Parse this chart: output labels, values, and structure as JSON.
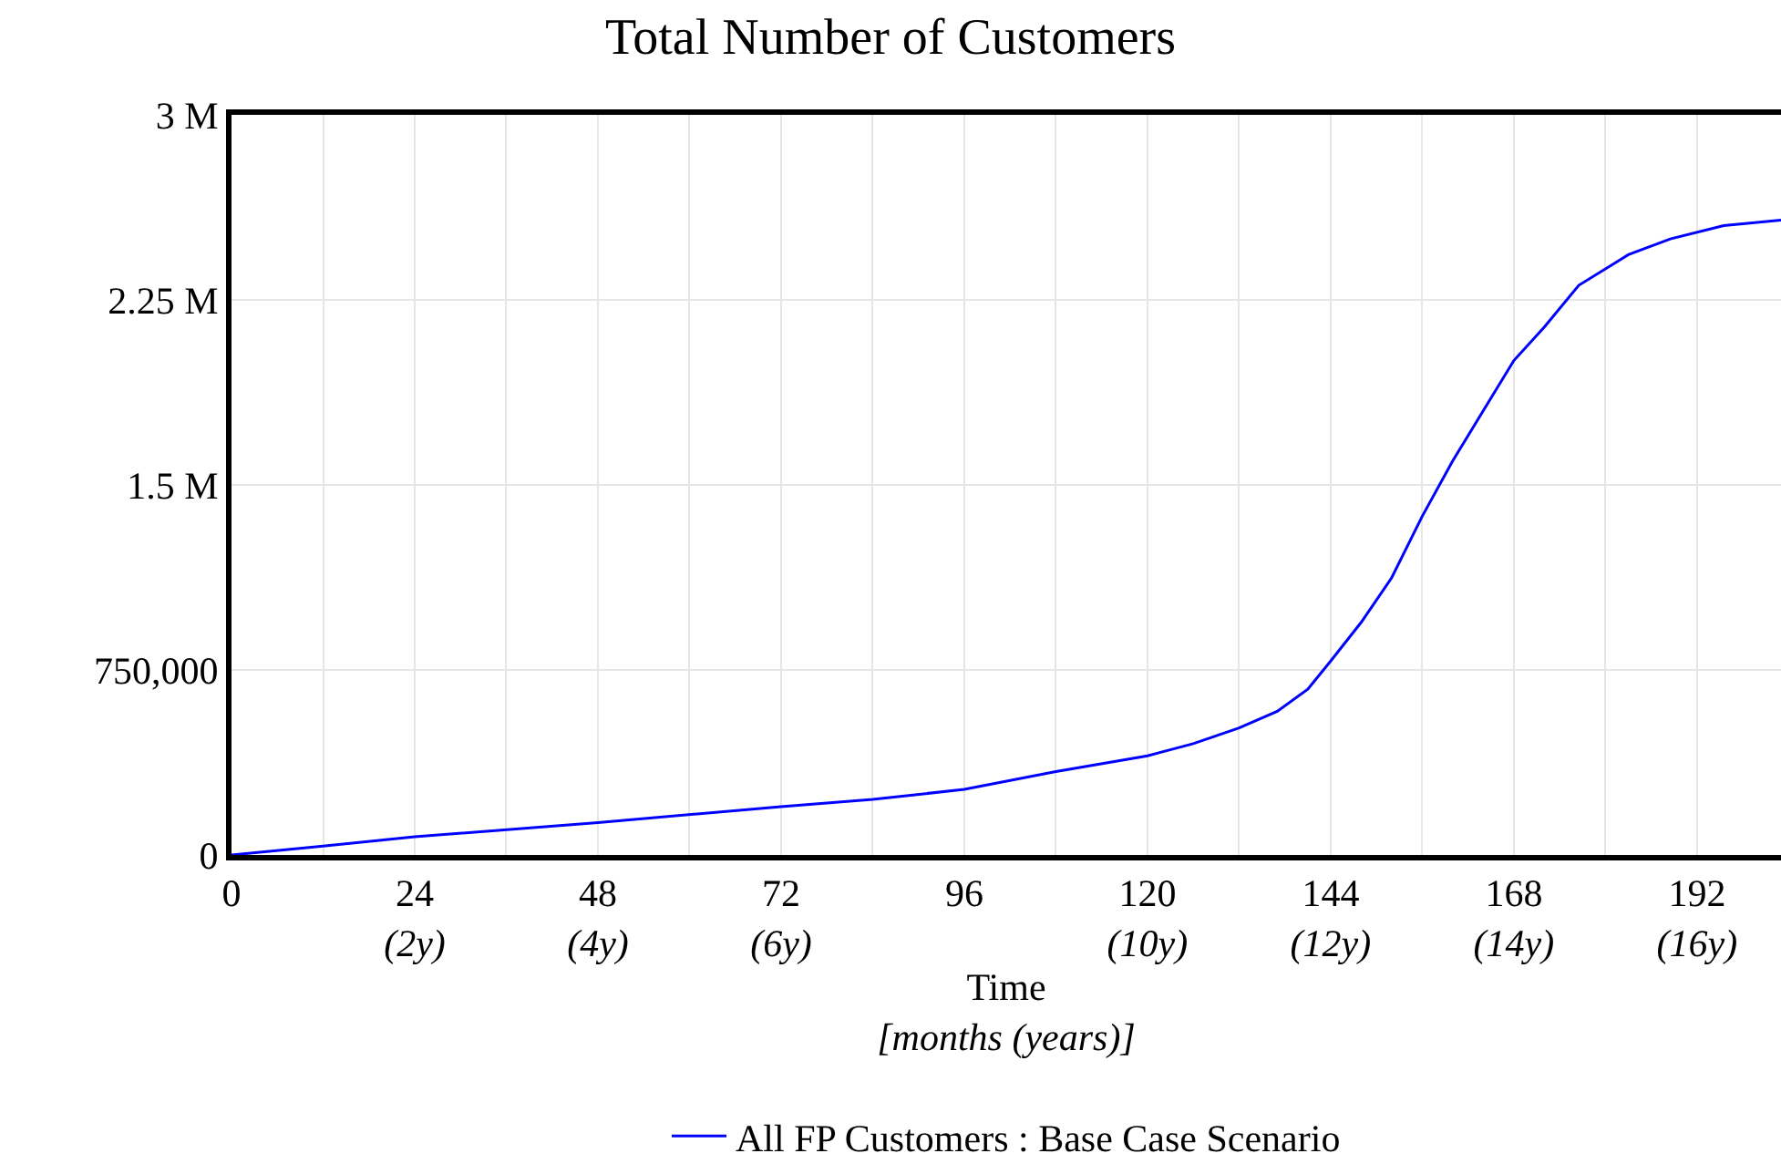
{
  "chart_data": {
    "type": "line",
    "title": "Total Number of Customers",
    "xlabel": "Time\n[months (years)]",
    "x": [
      0,
      12,
      24,
      48,
      72,
      84,
      96,
      108,
      120,
      126,
      132,
      137,
      141,
      144,
      148,
      152,
      156,
      160,
      164,
      168,
      172,
      176.5,
      183,
      188.5,
      195.5,
      203
    ],
    "series": [
      {
        "name": "All FP Customers : Base Case Scenario",
        "color": "#0000ff",
        "values": [
          0,
          36000,
          74000,
          131000,
          196000,
          225000,
          266000,
          338000,
          402000,
          451000,
          515000,
          582000,
          672000,
          786000,
          943000,
          1124000,
          1373000,
          1598000,
          1801000,
          2004000,
          2140000,
          2309000,
          2433000,
          2497000,
          2551000,
          2573000
        ]
      }
    ],
    "xlim": [
      0,
      203
    ],
    "xticks": [
      0,
      {
        "value": 12,
        "label": null
      },
      {
        "value": 24,
        "label": "24\n(2y)"
      },
      {
        "value": 36,
        "label": null
      },
      {
        "value": 48,
        "label": "48\n(4y)"
      },
      {
        "value": 60,
        "label": null
      },
      {
        "value": 72,
        "label": "72\n(6y)"
      },
      {
        "value": 84,
        "label": null
      },
      {
        "value": 96,
        "label": "96"
      },
      {
        "value": 108,
        "label": null
      },
      {
        "value": 120,
        "label": "120\n(10y)"
      },
      {
        "value": 132,
        "label": null
      },
      {
        "value": 144,
        "label": "144\n(12y)"
      },
      {
        "value": 156,
        "label": null
      },
      {
        "value": 168,
        "label": "168\n(14y)"
      },
      {
        "value": 180,
        "label": null
      },
      {
        "value": 192,
        "label": "192\n(16y)"
      }
    ],
    "ylim": [
      0,
      3000000
    ],
    "yticks": [
      0,
      {
        "value": 750000,
        "label": "750,000"
      },
      {
        "value": 1500000,
        "label": "1.5 M"
      },
      {
        "value": 2250000,
        "label": "2.25 M"
      },
      {
        "value": 3000000,
        "label": "3 M"
      }
    ],
    "grid": true,
    "legend": "bottom",
    "marker": "none",
    "line_style": "solid"
  }
}
